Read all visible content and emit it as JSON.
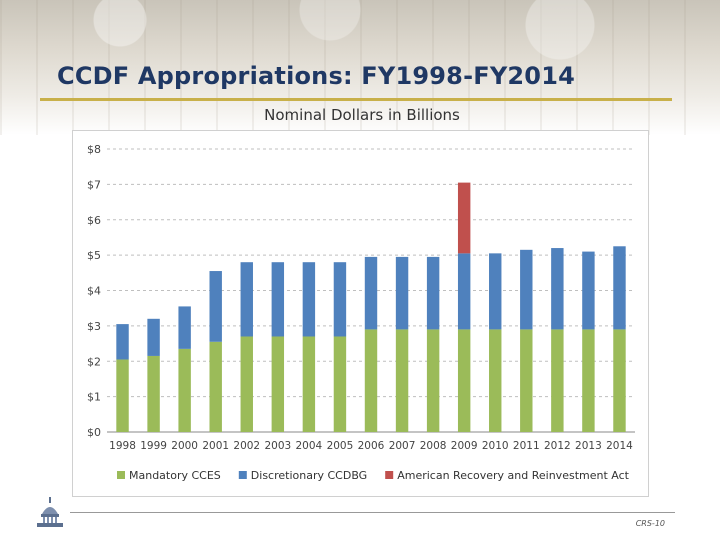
{
  "slide": {
    "title": "CCDF Appropriations: FY1998-FY2014",
    "subtitle": "Nominal Dollars in Billions",
    "footer": "CRS-10"
  },
  "colors": {
    "mandatory": "#9bbb59",
    "discretionary": "#4f81bd",
    "arra": "#c0504d",
    "title": "#1f3864",
    "accent_rule": "#c8b04a"
  },
  "icons": [
    "capitol-dome-icon"
  ],
  "chart_data": {
    "type": "bar",
    "stacked": true,
    "categories": [
      "1998",
      "1999",
      "2000",
      "2001",
      "2002",
      "2003",
      "2004",
      "2005",
      "2006",
      "2007",
      "2008",
      "2009",
      "2010",
      "2011",
      "2012",
      "2013",
      "2014"
    ],
    "series": [
      {
        "name": "Mandatory CCES",
        "values": [
          2.05,
          2.15,
          2.35,
          2.55,
          2.7,
          2.7,
          2.7,
          2.7,
          2.9,
          2.9,
          2.9,
          2.9,
          2.9,
          2.9,
          2.9,
          2.9,
          2.9
        ]
      },
      {
        "name": "Discretionary CCDBG",
        "values": [
          1.0,
          1.05,
          1.2,
          2.0,
          2.1,
          2.1,
          2.1,
          2.1,
          2.05,
          2.05,
          2.05,
          2.15,
          2.15,
          2.25,
          2.3,
          2.2,
          2.35
        ]
      },
      {
        "name": "American Recovery and Reinvestment Act",
        "values": [
          0,
          0,
          0,
          0,
          0,
          0,
          0,
          0,
          0,
          0,
          0,
          2.0,
          0,
          0,
          0,
          0,
          0
        ]
      }
    ],
    "yticks": [
      "$0",
      "$1",
      "$2",
      "$3",
      "$4",
      "$5",
      "$6",
      "$7",
      "$8"
    ],
    "ylim": [
      0,
      8
    ],
    "grid": true,
    "legend": "bottom"
  }
}
